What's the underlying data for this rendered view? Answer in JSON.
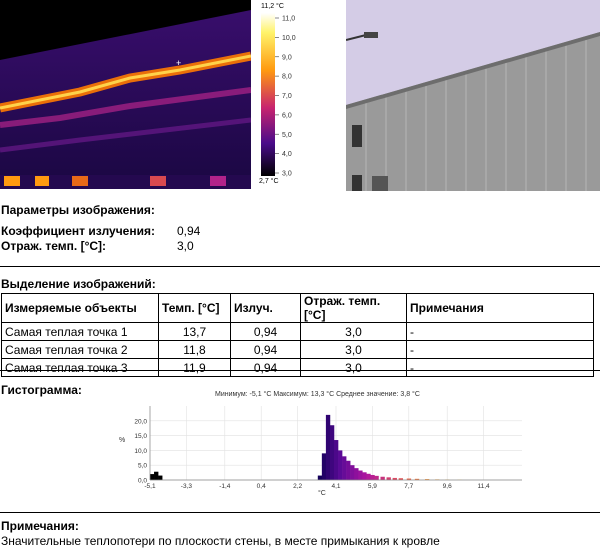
{
  "thermal_scale": {
    "max_label": "11,2 °C",
    "min_label": "2,7 °C",
    "ticks": [
      "11,0",
      "10,0",
      "9,0",
      "8,0",
      "7,0",
      "6,0",
      "5,0",
      "4,0",
      "3,0"
    ]
  },
  "image_params": {
    "title": "Параметры изображения:",
    "emissivity_label": "Коэффициент излучения:",
    "emissivity_value": "0,94",
    "refl_temp_label": "Отраж. темп. [°C]:",
    "refl_temp_value": "3,0"
  },
  "selection": {
    "title": "Выделение изображений:",
    "headers": [
      "Измеряемые объекты",
      "Темп. [°C]",
      "Излуч.",
      "Отраж. темп. [°C]",
      "Примечания"
    ],
    "rows": [
      [
        "Самая теплая точка 1",
        "13,7",
        "0,94",
        "3,0",
        "-"
      ],
      [
        "Самая теплая точка 2",
        "11,8",
        "0,94",
        "3,0",
        "-"
      ],
      [
        "Самая теплая точка 3",
        "11,9",
        "0,94",
        "3,0",
        "-"
      ]
    ]
  },
  "histogram": {
    "title": "Гистограмма:",
    "stats": "Минимум: -5,1 °C Максимум: 13,3 °C Среднее значение: 3,8 °C",
    "y_label": "%",
    "x_unit": "°C",
    "y_ticks": [
      "20,0",
      "15,0",
      "10,0",
      "5,0",
      "0,0"
    ],
    "x_ticks": [
      "-5,1",
      "-3,3",
      "-1,4",
      "0,4",
      "2,2",
      "4,1",
      "5,9",
      "7,7",
      "9,6",
      "11,4"
    ]
  },
  "chart_data": {
    "type": "bar",
    "title": "",
    "xlabel": "°C",
    "ylabel": "%",
    "xlim": [
      -5.1,
      13.3
    ],
    "ylim": [
      0,
      25
    ],
    "bins": [
      {
        "x": -5.0,
        "y": 2.0
      },
      {
        "x": -4.8,
        "y": 2.8
      },
      {
        "x": -4.6,
        "y": 1.5
      },
      {
        "x": 3.3,
        "y": 1.5
      },
      {
        "x": 3.5,
        "y": 9.0
      },
      {
        "x": 3.7,
        "y": 22.0
      },
      {
        "x": 3.9,
        "y": 18.5
      },
      {
        "x": 4.1,
        "y": 13.5
      },
      {
        "x": 4.3,
        "y": 10.0
      },
      {
        "x": 4.5,
        "y": 8.0
      },
      {
        "x": 4.7,
        "y": 6.5
      },
      {
        "x": 4.9,
        "y": 5.0
      },
      {
        "x": 5.1,
        "y": 4.0
      },
      {
        "x": 5.3,
        "y": 3.2
      },
      {
        "x": 5.5,
        "y": 2.6
      },
      {
        "x": 5.7,
        "y": 2.1
      },
      {
        "x": 5.9,
        "y": 1.7
      },
      {
        "x": 6.1,
        "y": 1.4
      },
      {
        "x": 6.4,
        "y": 1.1
      },
      {
        "x": 6.7,
        "y": 0.9
      },
      {
        "x": 7.0,
        "y": 0.7
      },
      {
        "x": 7.3,
        "y": 0.6
      },
      {
        "x": 7.7,
        "y": 0.5
      },
      {
        "x": 8.1,
        "y": 0.4
      },
      {
        "x": 8.6,
        "y": 0.3
      },
      {
        "x": 9.1,
        "y": 0.2
      },
      {
        "x": 9.6,
        "y": 0.15
      },
      {
        "x": 10.2,
        "y": 0.1
      }
    ]
  },
  "notes": {
    "title": "Примечания:",
    "text": "Значительные теплопотери по плоскости стены, в месте примыкания к кровле"
  }
}
